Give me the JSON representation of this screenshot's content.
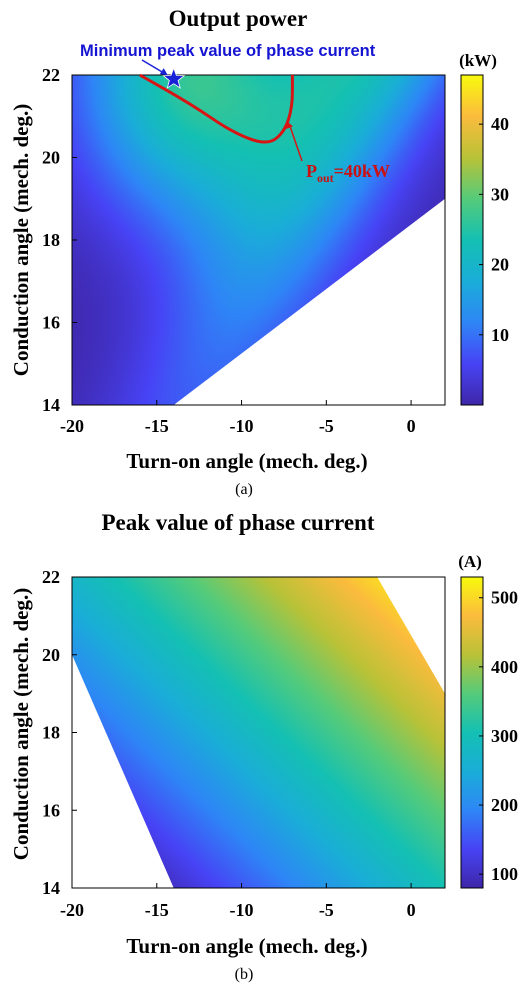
{
  "chart_data": [
    {
      "id": "a",
      "type": "heatmap",
      "title": "Output power",
      "xlabel": "Turn-on angle (mech. deg.)",
      "ylabel": "Conduction angle (mech. deg.)",
      "xlim": [
        -20,
        2
      ],
      "ylim": [
        14,
        22
      ],
      "x_ticks": [
        "-20",
        "-15",
        "-10",
        "-5",
        "0"
      ],
      "y_ticks": [
        "14",
        "16",
        "18",
        "20",
        "22"
      ],
      "region_polygon": [
        [
          -20,
          22
        ],
        [
          2,
          22
        ],
        [
          2,
          19
        ],
        [
          -14,
          14
        ],
        [
          -20,
          14
        ]
      ],
      "feasible_boundary_note": "data defined between x = -20 + 1.5*(22 - y) and x = 2 - 2.5*(22 - y)",
      "value_range": [
        0,
        48
      ],
      "peak_location": [
        -13.5,
        22
      ],
      "peak_value": 47,
      "colorbar": {
        "unit": "(kW)",
        "ticks": [
          "10",
          "20",
          "30",
          "40"
        ],
        "tick_values": [
          10,
          20,
          30,
          40
        ],
        "range": [
          0,
          47
        ]
      },
      "contour": {
        "label_main": "P",
        "label_sub": "out",
        "label_rest": "=40kW",
        "level": 40,
        "points": [
          [
            -16,
            22
          ],
          [
            -13,
            21.3
          ],
          [
            -10.5,
            20.6
          ],
          [
            -8.5,
            20.3
          ],
          [
            -7.5,
            20.6
          ],
          [
            -7,
            21.2
          ],
          [
            -7,
            22
          ]
        ]
      },
      "marker": {
        "label": "Minimum peak value of phase current",
        "x": -14,
        "y": 21.9,
        "symbol": "star"
      },
      "caption": "(a)"
    },
    {
      "id": "b",
      "type": "heatmap",
      "title": "Peak value of phase current",
      "xlabel": "Turn-on angle (mech. deg.)",
      "ylabel": "Conduction angle (mech. deg.)",
      "xlim": [
        -20,
        2
      ],
      "ylim": [
        14,
        22
      ],
      "x_ticks": [
        "-20",
        "-15",
        "-10",
        "-5",
        "0"
      ],
      "y_ticks": [
        "14",
        "16",
        "18",
        "20",
        "22"
      ],
      "region_polygon": [
        [
          -20,
          22
        ],
        [
          -2,
          22
        ],
        [
          2,
          19
        ],
        [
          2,
          14
        ],
        [
          -14,
          14
        ],
        [
          -20,
          20
        ]
      ],
      "value_range": [
        80,
        530
      ],
      "colorbar": {
        "unit": "(A)",
        "ticks": [
          "100",
          "200",
          "300",
          "400",
          "500"
        ],
        "tick_values": [
          100,
          200,
          300,
          400,
          500
        ],
        "range": [
          80,
          530
        ]
      },
      "caption": "(b)"
    }
  ],
  "colors": {
    "colormap": [
      "#3e26a8",
      "#4743f5",
      "#2e86f6",
      "#1aadd8",
      "#14c0b3",
      "#55cb7a",
      "#b9c237",
      "#fbbb3d",
      "#f8fa0d"
    ],
    "contour": "#d81515",
    "marker": "#1a22d8",
    "frame": "#000000"
  }
}
